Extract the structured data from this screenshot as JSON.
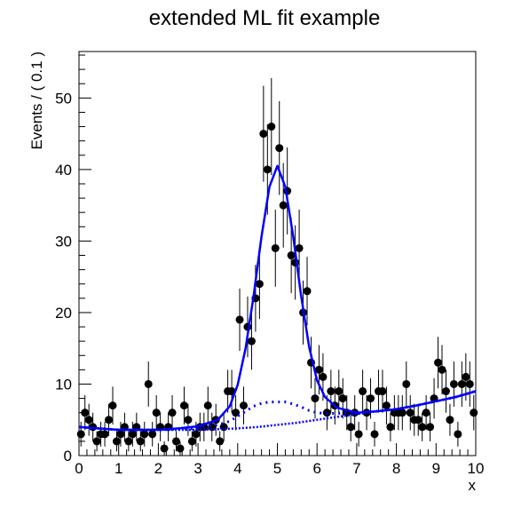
{
  "chart_data": {
    "type": "scatter",
    "title": "extended ML fit example",
    "xlabel": "x",
    "ylabel": "Events / ( 0.1 )",
    "xlim": [
      0,
      10
    ],
    "ylim": [
      0,
      56.5
    ],
    "x_ticks": [
      0,
      1,
      2,
      3,
      4,
      5,
      6,
      7,
      8,
      9,
      10
    ],
    "y_ticks": [
      0,
      10,
      20,
      30,
      40,
      50
    ],
    "grid": false,
    "legend": "none",
    "colors": {
      "data": "#000000",
      "fit": "#0000ff"
    },
    "series": [
      {
        "kind": "data-points-with-error-bars",
        "x": [
          0.05,
          0.15,
          0.25,
          0.35,
          0.45,
          0.55,
          0.65,
          0.75,
          0.85,
          0.95,
          1.05,
          1.15,
          1.25,
          1.35,
          1.45,
          1.55,
          1.65,
          1.75,
          1.85,
          1.95,
          2.05,
          2.15,
          2.25,
          2.35,
          2.45,
          2.55,
          2.65,
          2.75,
          2.85,
          2.95,
          3.05,
          3.15,
          3.25,
          3.35,
          3.45,
          3.55,
          3.65,
          3.75,
          3.85,
          3.95,
          4.05,
          4.15,
          4.25,
          4.35,
          4.45,
          4.55,
          4.65,
          4.75,
          4.85,
          4.95,
          5.05,
          5.15,
          5.25,
          5.35,
          5.45,
          5.55,
          5.65,
          5.75,
          5.85,
          5.95,
          6.05,
          6.15,
          6.25,
          6.35,
          6.45,
          6.55,
          6.65,
          6.75,
          6.85,
          6.95,
          7.05,
          7.15,
          7.25,
          7.35,
          7.45,
          7.55,
          7.65,
          7.75,
          7.85,
          7.95,
          8.05,
          8.15,
          8.25,
          8.35,
          8.45,
          8.55,
          8.65,
          8.75,
          8.85,
          8.95,
          9.05,
          9.15,
          9.25,
          9.35,
          9.45,
          9.55,
          9.65,
          9.75,
          9.85,
          9.95
        ],
        "y": [
          3,
          6,
          5,
          4,
          2,
          3,
          3,
          5,
          7,
          2,
          3,
          4,
          2,
          3,
          4,
          2,
          3,
          10,
          3,
          6,
          4,
          1,
          4,
          6,
          2,
          1,
          7,
          5,
          2,
          3,
          4,
          4,
          7,
          4,
          5,
          2,
          4,
          9,
          9,
          6,
          19,
          7,
          18,
          16,
          22,
          24,
          45,
          40,
          46,
          29,
          43,
          35,
          37,
          28,
          27,
          29,
          20,
          23,
          13,
          8,
          12,
          11,
          6,
          9,
          7,
          9,
          8,
          6,
          4,
          6,
          3,
          9,
          6,
          8,
          3,
          9,
          9,
          7,
          4,
          6,
          6,
          6,
          10,
          6,
          5,
          5,
          4,
          6,
          4,
          8,
          13,
          12,
          9,
          5,
          10,
          3,
          10,
          11,
          10,
          6
        ],
        "yerr": "sqrt(y)"
      },
      {
        "kind": "fit-curve-total",
        "style": "solid",
        "x": [
          0,
          0.5,
          1,
          1.5,
          2,
          2.5,
          3,
          3.5,
          3.8,
          4,
          4.2,
          4.4,
          4.6,
          4.8,
          5,
          5.2,
          5.4,
          5.6,
          5.8,
          6,
          6.2,
          6.5,
          7,
          7.5,
          8,
          8.5,
          9,
          9.5,
          10
        ],
        "y": [
          4.0,
          3.8,
          3.6,
          3.6,
          3.6,
          3.8,
          4.1,
          5.0,
          6.9,
          9.9,
          15.0,
          22.3,
          30.6,
          37.6,
          40.5,
          37.6,
          30.6,
          22.3,
          15.2,
          10.5,
          8.2,
          6.7,
          6.0,
          6.2,
          6.5,
          7.0,
          7.6,
          8.2,
          9.0
        ]
      },
      {
        "kind": "fit-component-1",
        "style": "dotted",
        "x": [
          0,
          0.5,
          1,
          1.5,
          2,
          2.5,
          3,
          3.5,
          3.8,
          4,
          4.2,
          4.4,
          4.6,
          4.8,
          5,
          5.2,
          5.4,
          5.6,
          5.8,
          6,
          6.2,
          6.5,
          7,
          7.5,
          8,
          8.5,
          9,
          9.5,
          10
        ],
        "y": [
          4.0,
          3.8,
          3.6,
          3.6,
          3.6,
          3.7,
          3.8,
          4.3,
          4.8,
          5.5,
          6.2,
          6.9,
          7.3,
          7.5,
          7.5,
          7.5,
          7.2,
          6.8,
          6.3,
          6.0,
          5.9,
          5.9,
          6.0,
          6.2,
          6.5,
          7.0,
          7.6,
          8.2,
          9.0
        ]
      },
      {
        "kind": "fit-component-2",
        "style": "dashed",
        "x": [
          0,
          0.5,
          1,
          1.5,
          2,
          2.5,
          3,
          3.5,
          4,
          4.5,
          5,
          5.5,
          6,
          6.5,
          7,
          7.5,
          8,
          8.5,
          9,
          9.5,
          10
        ],
        "y": [
          4.0,
          3.8,
          3.6,
          3.6,
          3.6,
          3.6,
          3.6,
          3.7,
          3.8,
          4.0,
          4.3,
          4.6,
          5.0,
          5.4,
          5.8,
          6.2,
          6.5,
          7.0,
          7.6,
          8.2,
          9.0
        ]
      }
    ]
  }
}
